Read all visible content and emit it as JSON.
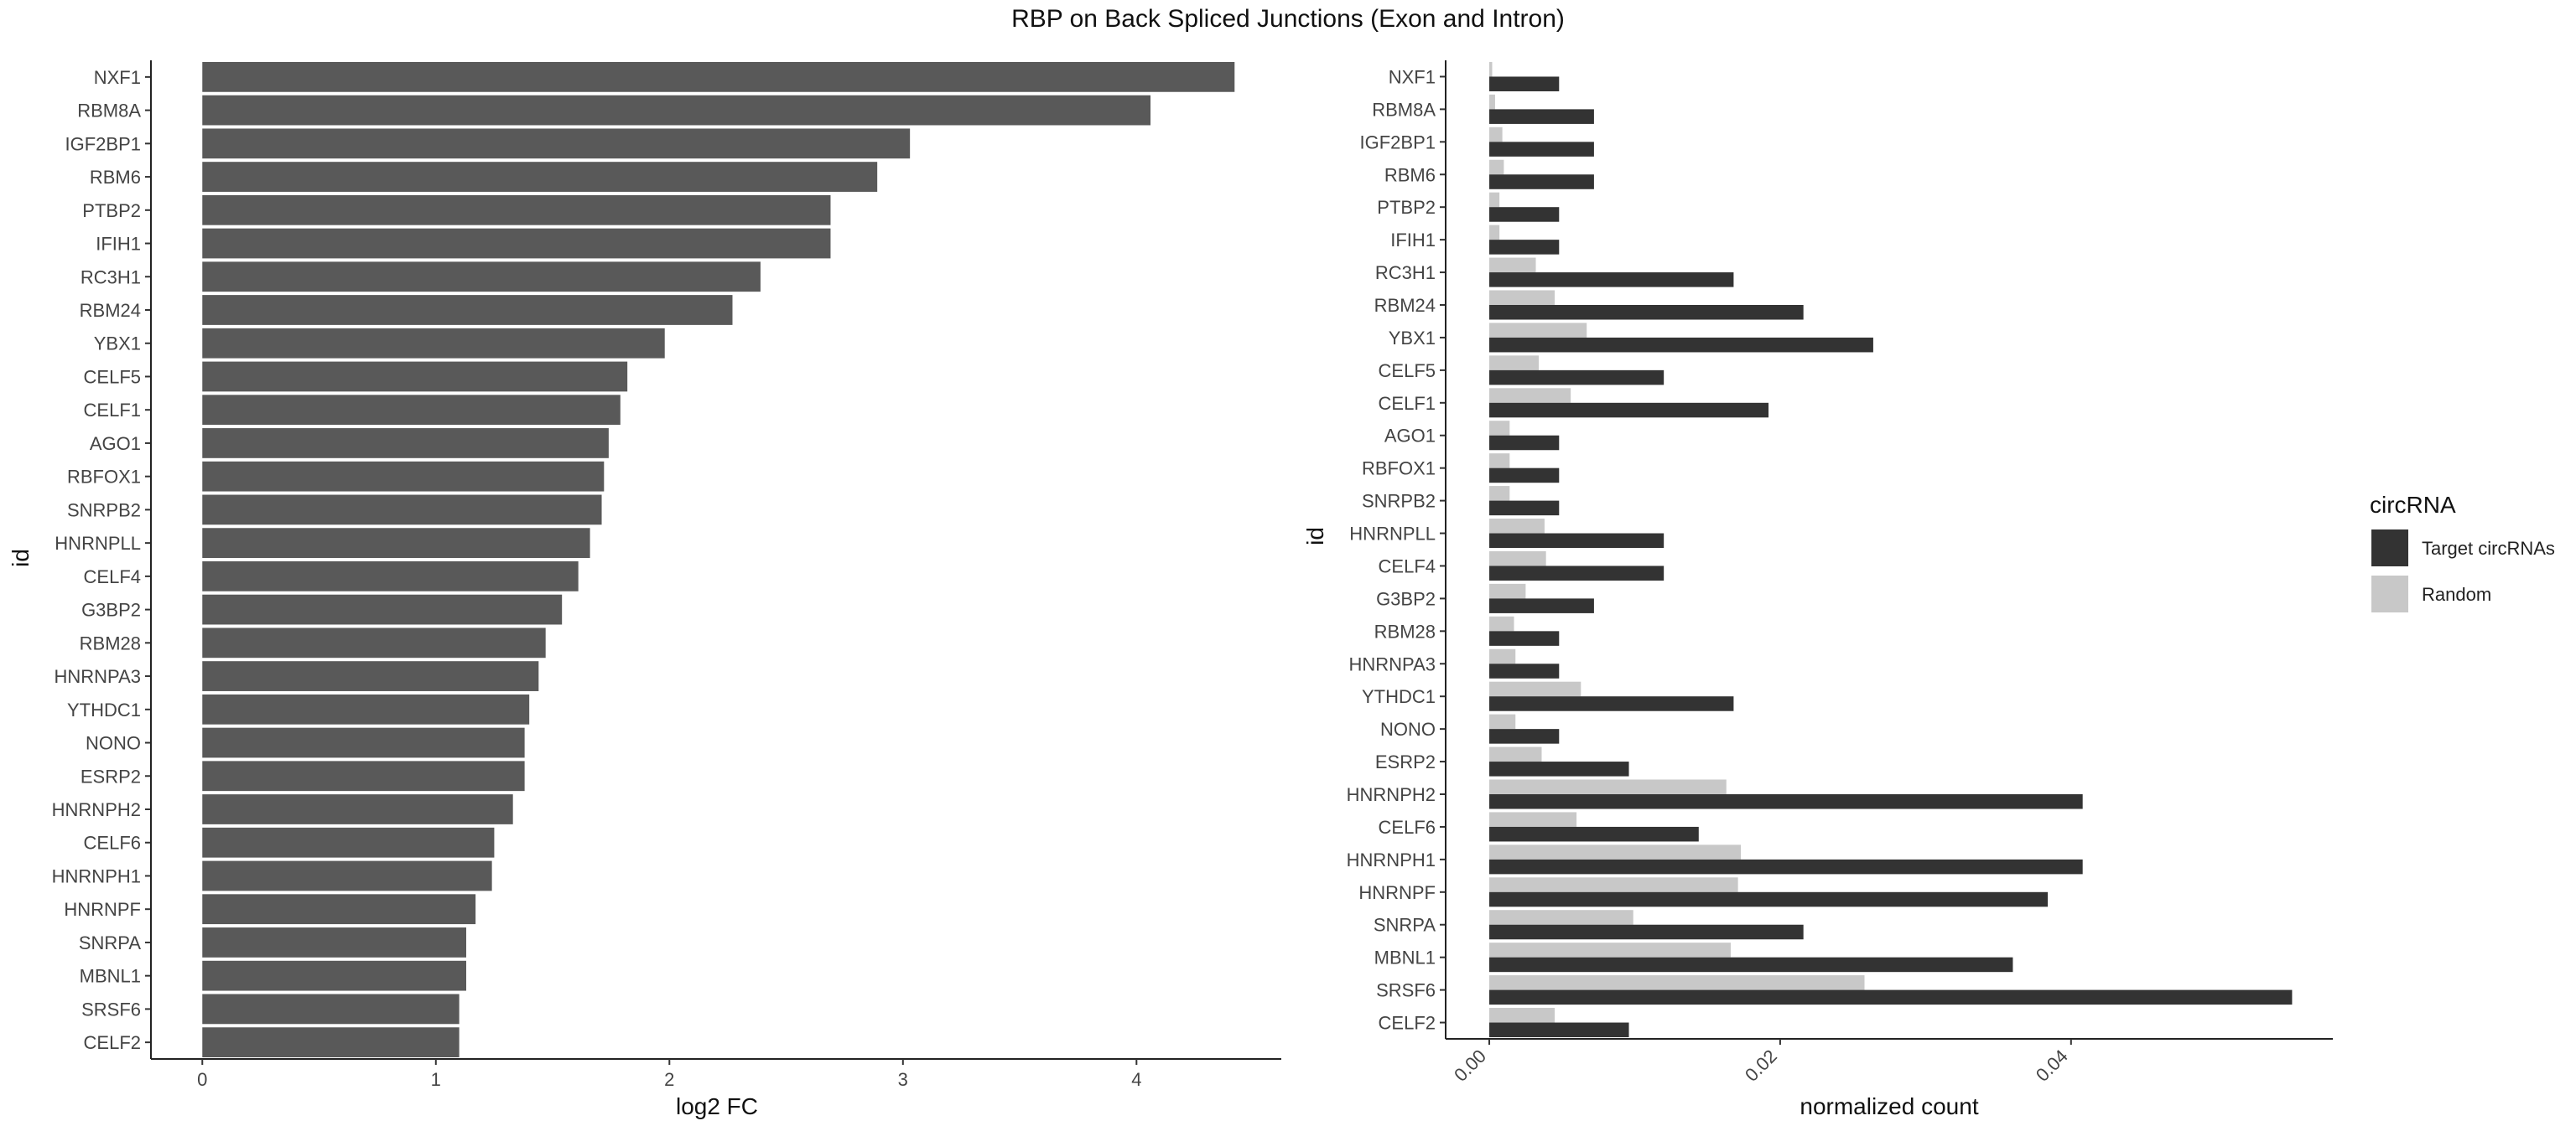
{
  "title": "RBP on Back Spliced Junctions (Exon and Intron)",
  "chart_data": [
    {
      "type": "bar",
      "orientation": "horizontal",
      "xlabel": "log2 FC",
      "ylabel": "id",
      "xlim": [
        -0.22,
        4.62
      ],
      "xticks": [
        0,
        1,
        2,
        3,
        4
      ],
      "grid": false,
      "bar_color": "#595959",
      "categories": [
        "NXF1",
        "RBM8A",
        "IGF2BP1",
        "RBM6",
        "PTBP2",
        "IFIH1",
        "RC3H1",
        "RBM24",
        "YBX1",
        "CELF5",
        "CELF1",
        "AGO1",
        "RBFOX1",
        "SNRPB2",
        "HNRNPLL",
        "CELF4",
        "G3BP2",
        "RBM28",
        "HNRNPA3",
        "YTHDC1",
        "NONO",
        "ESRP2",
        "HNRNPH2",
        "CELF6",
        "HNRNPH1",
        "HNRNPF",
        "SNRPA",
        "MBNL1",
        "SRSF6",
        "CELF2"
      ],
      "values": [
        4.42,
        4.06,
        3.03,
        2.89,
        2.69,
        2.69,
        2.39,
        2.27,
        1.98,
        1.82,
        1.79,
        1.74,
        1.72,
        1.71,
        1.66,
        1.61,
        1.54,
        1.47,
        1.44,
        1.4,
        1.38,
        1.38,
        1.33,
        1.25,
        1.24,
        1.17,
        1.13,
        1.13,
        1.1,
        1.1
      ]
    },
    {
      "type": "bar",
      "orientation": "horizontal",
      "grouped": true,
      "xlabel": "normalized count",
      "ylabel": "id",
      "xlim": [
        -0.003,
        0.058
      ],
      "xticks": [
        0.0,
        0.02,
        0.04
      ],
      "xtick_labels": [
        "0.00",
        "0.02",
        "0.04"
      ],
      "grid": false,
      "legend": {
        "title": "circRNA",
        "position": "right"
      },
      "categories": [
        "NXF1",
        "RBM8A",
        "IGF2BP1",
        "RBM6",
        "PTBP2",
        "IFIH1",
        "RC3H1",
        "RBM24",
        "YBX1",
        "CELF5",
        "CELF1",
        "AGO1",
        "RBFOX1",
        "SNRPB2",
        "HNRNPLL",
        "CELF4",
        "G3BP2",
        "RBM28",
        "HNRNPA3",
        "YTHDC1",
        "NONO",
        "ESRP2",
        "HNRNPH2",
        "CELF6",
        "HNRNPH1",
        "HNRNPF",
        "SNRPA",
        "MBNL1",
        "SRSF6",
        "CELF2"
      ],
      "series": [
        {
          "name": "Target circRNAs",
          "color": "#333333",
          "values": [
            0.0048,
            0.0072,
            0.0072,
            0.0072,
            0.0048,
            0.0048,
            0.0168,
            0.0216,
            0.0264,
            0.012,
            0.0192,
            0.0048,
            0.0048,
            0.0048,
            0.012,
            0.012,
            0.0072,
            0.0048,
            0.0048,
            0.0168,
            0.0048,
            0.0096,
            0.0408,
            0.0144,
            0.0408,
            0.0384,
            0.0216,
            0.036,
            0.0552,
            0.0096
          ]
        },
        {
          "name": "Random",
          "color": "#c8c8c8",
          "values": [
            0.0002,
            0.0004,
            0.0009,
            0.001,
            0.0007,
            0.0007,
            0.0032,
            0.0045,
            0.0067,
            0.0034,
            0.0056,
            0.0014,
            0.0014,
            0.0014,
            0.0038,
            0.0039,
            0.0025,
            0.0017,
            0.0018,
            0.0063,
            0.0018,
            0.0036,
            0.0163,
            0.006,
            0.0173,
            0.0171,
            0.0099,
            0.0166,
            0.0258,
            0.0045
          ]
        }
      ]
    }
  ]
}
